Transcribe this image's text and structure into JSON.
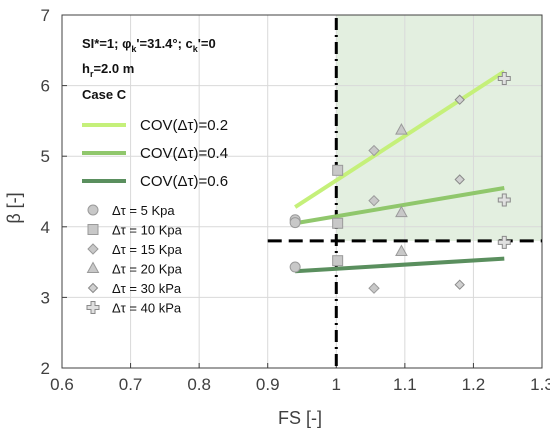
{
  "chart_data": {
    "type": "scatter",
    "xlabel": "FS [-]",
    "ylabel": "β [-]",
    "xlim": [
      0.6,
      1.3
    ],
    "ylim": [
      2,
      7
    ],
    "xticks": [
      "0.6",
      "0.7",
      "0.8",
      "0.9",
      "1",
      "1.1",
      "1.2",
      "1.3"
    ],
    "yticks": [
      "2",
      "3",
      "4",
      "5",
      "6",
      "7"
    ],
    "info_lines": [
      "SI*=1; φk'=31.4°; ck'=0",
      "hr=2.0 m",
      "Case C"
    ],
    "reference_lines": {
      "fs": 1.0,
      "beta": 3.8
    },
    "shaded_region": {
      "x": [
        1.0,
        1.3
      ],
      "y": [
        3.8,
        7
      ],
      "color": "#e3efe0"
    },
    "lines": [
      {
        "name": "COV(Δτ)=0.2",
        "color": "#c5f07a",
        "x": [
          0.94,
          1.245
        ],
        "y": [
          4.28,
          6.2
        ]
      },
      {
        "name": "COV(Δτ)=0.4",
        "color": "#90c76c",
        "x": [
          0.94,
          1.245
        ],
        "y": [
          4.05,
          4.55
        ]
      },
      {
        "name": "COV(Δτ)=0.6",
        "color": "#5a8f5e",
        "x": [
          0.94,
          1.245
        ],
        "y": [
          3.37,
          3.55
        ]
      }
    ],
    "markers": [
      {
        "name": "Δτ = 5 Kpa",
        "symbol": "circle",
        "points": [
          [
            0.94,
            4.1
          ],
          [
            0.94,
            4.06
          ],
          [
            0.94,
            3.43
          ]
        ]
      },
      {
        "name": "Δτ = 10 Kpa",
        "symbol": "square",
        "points": [
          [
            1.002,
            4.8
          ],
          [
            1.002,
            4.05
          ],
          [
            1.002,
            3.52
          ]
        ]
      },
      {
        "name": "Δτ = 15 Kpa",
        "symbol": "diamond",
        "points": [
          [
            1.055,
            5.08
          ],
          [
            1.055,
            4.37
          ],
          [
            1.055,
            3.13
          ]
        ]
      },
      {
        "name": "Δτ = 20 Kpa",
        "symbol": "triangle",
        "points": [
          [
            1.095,
            5.37
          ],
          [
            1.095,
            4.2
          ],
          [
            1.095,
            3.65
          ]
        ]
      },
      {
        "name": "Δτ = 30 kPa",
        "symbol": "diamond-small",
        "points": [
          [
            1.18,
            5.8
          ],
          [
            1.18,
            4.67
          ],
          [
            1.18,
            3.18
          ]
        ]
      },
      {
        "name": "Δτ = 40 kPa",
        "symbol": "plus",
        "points": [
          [
            1.245,
            6.1
          ],
          [
            1.245,
            4.38
          ],
          [
            1.245,
            3.78
          ]
        ]
      }
    ]
  }
}
